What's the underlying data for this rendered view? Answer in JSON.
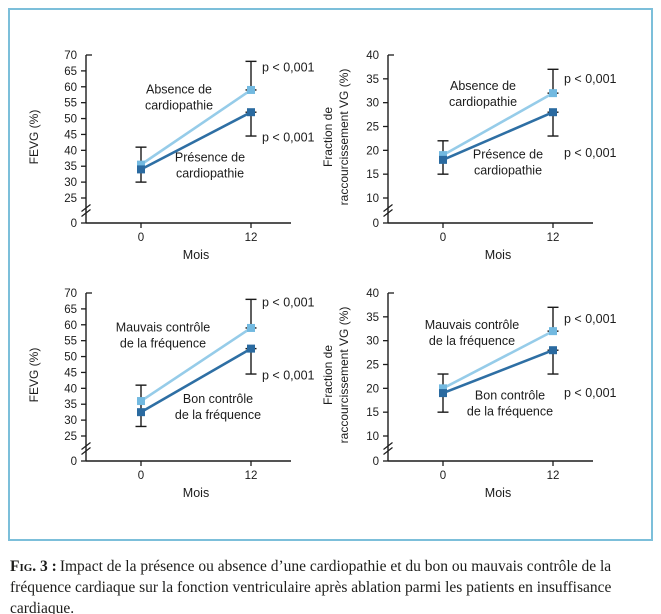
{
  "figure": {
    "caption_label": "Fig. 3 :",
    "caption_text": "Impact de la présence ou absence d’une cardiopathie et du bon ou mauvais contrôle de la fréquence cardiaque sur la fonction ventriculaire après ablation parmi les patients en insuffisance cardiaque."
  },
  "colors": {
    "border": "#7CBFDA",
    "axis": "#1C1C1C",
    "error_bar": "#1A1A1A",
    "text": "#1C1C1C",
    "light_line": "#96CCE9",
    "light_marker": "#72B9E0",
    "dark_line": "#2E6FA4",
    "dark_marker": "#2A6AA0"
  },
  "chart_data": [
    {
      "type": "line",
      "position": "top-left",
      "ylabel_lines": [
        "FEVG (%)"
      ],
      "xlabel": "Mois",
      "x": [
        0,
        12
      ],
      "yticks_main": [
        70,
        65,
        60,
        55,
        50,
        45,
        40,
        35,
        30,
        25
      ],
      "y_zero_tick": 0,
      "y_axis_break": true,
      "grid": false,
      "legend_position": "inline-labels",
      "series": [
        {
          "name": "Absence de cardiopathie",
          "color_role": "light",
          "values": [
            35.5,
            59
          ]
        },
        {
          "name": "Présence de cardiopathie",
          "color_role": "dark",
          "values": [
            34,
            52
          ]
        }
      ],
      "error_bars": [
        {
          "x": 0,
          "lo": 30,
          "hi": 41
        },
        {
          "x": 12,
          "lo": 59,
          "hi": 68
        },
        {
          "x": 12,
          "lo": 44.5,
          "hi": 52
        }
      ],
      "series_labels": [
        {
          "lines": [
            "Absence de",
            "cardiopathie"
          ],
          "x": 173,
          "v": 57
        },
        {
          "lines": [
            "Présence de",
            "cardiopathie"
          ],
          "x": 204,
          "v": 35.5
        }
      ],
      "annotations": [
        {
          "text": "p < 0,001",
          "v": 66
        },
        {
          "text": "p < 0,001",
          "v": 44
        }
      ]
    },
    {
      "type": "line",
      "position": "top-right",
      "ylabel_lines": [
        "Fraction de",
        "raccourcissement VG (%)"
      ],
      "xlabel": "Mois",
      "x": [
        0,
        12
      ],
      "yticks_main": [
        40,
        35,
        30,
        25,
        20,
        15,
        10
      ],
      "y_zero_tick": 0,
      "y_axis_break": true,
      "grid": false,
      "legend_position": "inline-labels",
      "series": [
        {
          "name": "Absence de cardiopathie",
          "color_role": "light",
          "values": [
            19,
            32
          ]
        },
        {
          "name": "Présence de cardiopathie",
          "color_role": "dark",
          "values": [
            18,
            28
          ]
        }
      ],
      "error_bars": [
        {
          "x": 0,
          "lo": 15,
          "hi": 22
        },
        {
          "x": 12,
          "lo": 32,
          "hi": 37
        },
        {
          "x": 12,
          "lo": 23,
          "hi": 28
        }
      ],
      "series_labels": [
        {
          "lines": [
            "Absence de",
            "cardiopathie"
          ],
          "x": 175,
          "v": 32
        },
        {
          "lines": [
            "Présence de",
            "cardiopathie"
          ],
          "x": 200,
          "v": 17.7
        }
      ],
      "annotations": [
        {
          "text": "p < 0,001",
          "v": 35
        },
        {
          "text": "p < 0,001",
          "v": 19.4
        }
      ]
    },
    {
      "type": "line",
      "position": "bottom-left",
      "ylabel_lines": [
        "FEVG (%)"
      ],
      "xlabel": "Mois",
      "x": [
        0,
        12
      ],
      "yticks_main": [
        70,
        65,
        60,
        55,
        50,
        45,
        40,
        35,
        30,
        25
      ],
      "y_zero_tick": 0,
      "y_axis_break": true,
      "grid": false,
      "legend_position": "inline-labels",
      "series": [
        {
          "name": "Mauvais contrôle de la fréquence",
          "color_role": "light",
          "values": [
            36,
            59
          ]
        },
        {
          "name": "Bon contrôle de la fréquence",
          "color_role": "dark",
          "values": [
            32.5,
            52.5
          ]
        }
      ],
      "error_bars": [
        {
          "x": 0,
          "lo": 28,
          "hi": 41
        },
        {
          "x": 12,
          "lo": 59,
          "hi": 68
        },
        {
          "x": 12,
          "lo": 44.5,
          "hi": 52.5
        }
      ],
      "series_labels": [
        {
          "lines": [
            "Mauvais contrôle",
            "de la fréquence"
          ],
          "x": 157,
          "v": 57
        },
        {
          "lines": [
            "Bon contrôle",
            "de la fréquence"
          ],
          "x": 212,
          "v": 34.5
        }
      ],
      "annotations": [
        {
          "text": "p < 0,001",
          "v": 67
        },
        {
          "text": "p < 0,001",
          "v": 44
        }
      ]
    },
    {
      "type": "line",
      "position": "bottom-right",
      "ylabel_lines": [
        "Fraction de",
        "raccourcissement VG (%)"
      ],
      "xlabel": "Mois",
      "x": [
        0,
        12
      ],
      "yticks_main": [
        40,
        35,
        30,
        25,
        20,
        15,
        10
      ],
      "y_zero_tick": 0,
      "y_axis_break": true,
      "grid": false,
      "legend_position": "inline-labels",
      "series": [
        {
          "name": "Mauvais contrôle de la fréquence",
          "color_role": "light",
          "values": [
            20,
            32
          ]
        },
        {
          "name": "Bon contrôle de la fréquence",
          "color_role": "dark",
          "values": [
            19,
            28
          ]
        }
      ],
      "error_bars": [
        {
          "x": 0,
          "lo": 15,
          "hi": 23
        },
        {
          "x": 12,
          "lo": 32,
          "hi": 37
        },
        {
          "x": 12,
          "lo": 23,
          "hi": 28
        }
      ],
      "series_labels": [
        {
          "lines": [
            "Mauvais contrôle",
            "de la fréquence"
          ],
          "x": 164,
          "v": 31.8
        },
        {
          "lines": [
            "Bon contrôle",
            "de la fréquence"
          ],
          "x": 202,
          "v": 17
        }
      ],
      "annotations": [
        {
          "text": "p < 0,001",
          "v": 34.5
        },
        {
          "text": "p < 0,001",
          "v": 19
        }
      ]
    }
  ]
}
